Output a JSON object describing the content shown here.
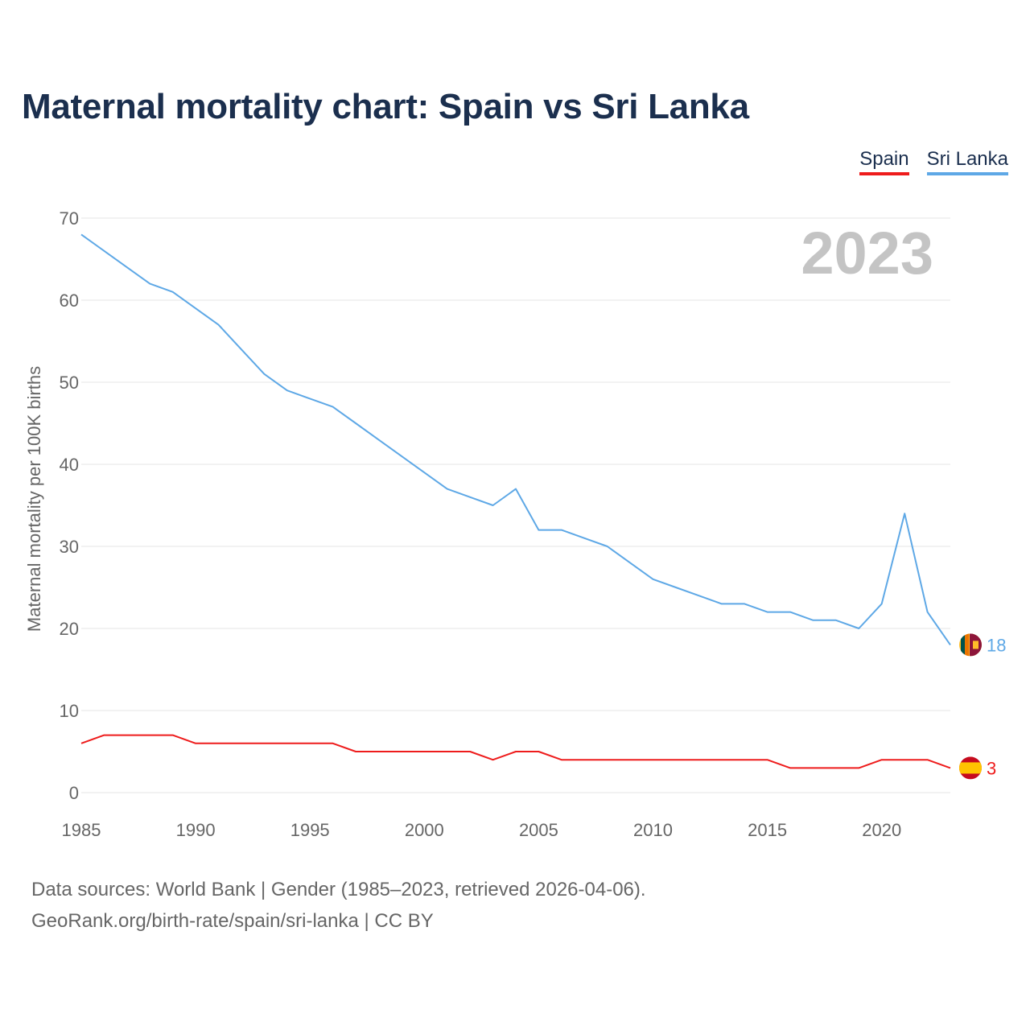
{
  "title": "Maternal mortality chart: Spain vs Sri Lanka",
  "legend": [
    {
      "name": "Spain",
      "color": "#ee1c1c"
    },
    {
      "name": "Sri Lanka",
      "color": "#5ea8e6"
    }
  ],
  "footer": {
    "line1": "Data sources: World Bank | Gender (1985–2023, retrieved 2026-04-06).",
    "line2": "GeoRank.org/birth-rate/spain/sri-lanka | CC BY"
  },
  "chart_data": {
    "type": "line",
    "title": "Maternal mortality chart: Spain vs Sri Lanka",
    "year_label": "2023",
    "xlabel": "",
    "ylabel": "Maternal mortality per 100K births",
    "xlim": [
      1985,
      2023
    ],
    "ylim": [
      0,
      70
    ],
    "x_ticks": [
      1985,
      1990,
      1995,
      2000,
      2005,
      2010,
      2015,
      2020
    ],
    "y_ticks": [
      0,
      10,
      20,
      30,
      40,
      50,
      60,
      70
    ],
    "grid": true,
    "legend_position": "top-right",
    "x": [
      1985,
      1986,
      1987,
      1988,
      1989,
      1990,
      1991,
      1992,
      1993,
      1994,
      1995,
      1996,
      1997,
      1998,
      1999,
      2000,
      2001,
      2002,
      2003,
      2004,
      2005,
      2006,
      2007,
      2008,
      2009,
      2010,
      2011,
      2012,
      2013,
      2014,
      2015,
      2016,
      2017,
      2018,
      2019,
      2020,
      2021,
      2022,
      2023
    ],
    "series": [
      {
        "name": "Spain",
        "color": "#ee1c1c",
        "end_label": "3",
        "flag": "spain-flag",
        "values": [
          6,
          7,
          7,
          7,
          7,
          6,
          6,
          6,
          6,
          6,
          6,
          6,
          5,
          5,
          5,
          5,
          5,
          5,
          4,
          5,
          5,
          4,
          4,
          4,
          4,
          4,
          4,
          4,
          4,
          4,
          4,
          3,
          3,
          3,
          3,
          4,
          4,
          4,
          3
        ]
      },
      {
        "name": "Sri Lanka",
        "color": "#5ea8e6",
        "end_label": "18",
        "flag": "sri-lanka-flag",
        "values": [
          68,
          66,
          64,
          62,
          61,
          59,
          57,
          54,
          51,
          49,
          48,
          47,
          45,
          43,
          41,
          39,
          37,
          36,
          35,
          37,
          32,
          32,
          31,
          30,
          28,
          26,
          25,
          24,
          23,
          23,
          22,
          22,
          21,
          21,
          20,
          23,
          34,
          22,
          18
        ]
      }
    ]
  }
}
